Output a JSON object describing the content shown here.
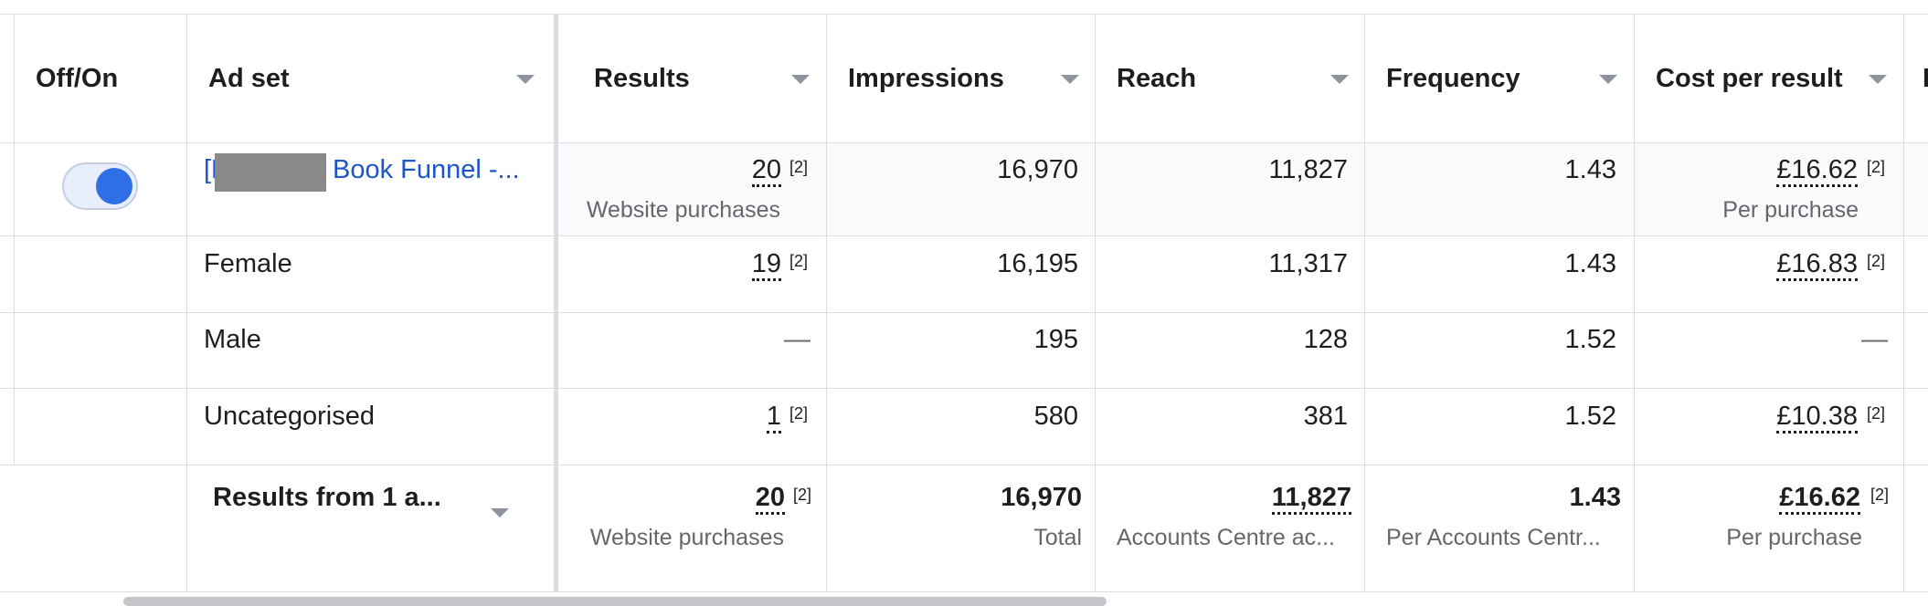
{
  "columns": {
    "off_on": "Off/On",
    "ad_set": "Ad set",
    "results": "Results",
    "impressions": "Impressions",
    "reach": "Reach",
    "frequency": "Frequency",
    "cost_per_result": "Cost per result",
    "next_partial": "I"
  },
  "rows": [
    {
      "toggle_on": true,
      "ad_set_prefix": "[N",
      "ad_set_suffix": "Book Funnel -...",
      "results": "20",
      "results_note": "[2]",
      "results_sub": "Website purchases",
      "impressions": "16,970",
      "reach": "11,827",
      "frequency": "1.43",
      "cost": "£16.62",
      "cost_note": "[2]",
      "cost_sub": "Per purchase"
    },
    {
      "ad_set": "Female",
      "results": "19",
      "results_note": "[2]",
      "impressions": "16,195",
      "reach": "11,317",
      "frequency": "1.43",
      "cost": "£16.83",
      "cost_note": "[2]"
    },
    {
      "ad_set": "Male",
      "results": "—",
      "impressions": "195",
      "reach": "128",
      "frequency": "1.52",
      "cost": "—"
    },
    {
      "ad_set": "Uncategorised",
      "results": "1",
      "results_note": "[2]",
      "impressions": "580",
      "reach": "381",
      "frequency": "1.52",
      "cost": "£10.38",
      "cost_note": "[2]"
    }
  ],
  "summary": {
    "label": "Results from 1 a...",
    "results": "20",
    "results_note": "[2]",
    "results_sub": "Website purchases",
    "impressions": "16,970",
    "impressions_sub": "Total",
    "reach": "11,827",
    "reach_sub": "Accounts Centre ac...",
    "frequency": "1.43",
    "frequency_sub": "Per Accounts Centr...",
    "cost": "£16.62",
    "cost_note": "[2]",
    "cost_sub": "Per purchase"
  },
  "icons": {
    "sort": "chevron-down-icon",
    "toggle": "toggle-switch-on"
  },
  "colors": {
    "link": "#1a56c9",
    "toggle": "#2f6fe5",
    "border": "#dadde1"
  }
}
